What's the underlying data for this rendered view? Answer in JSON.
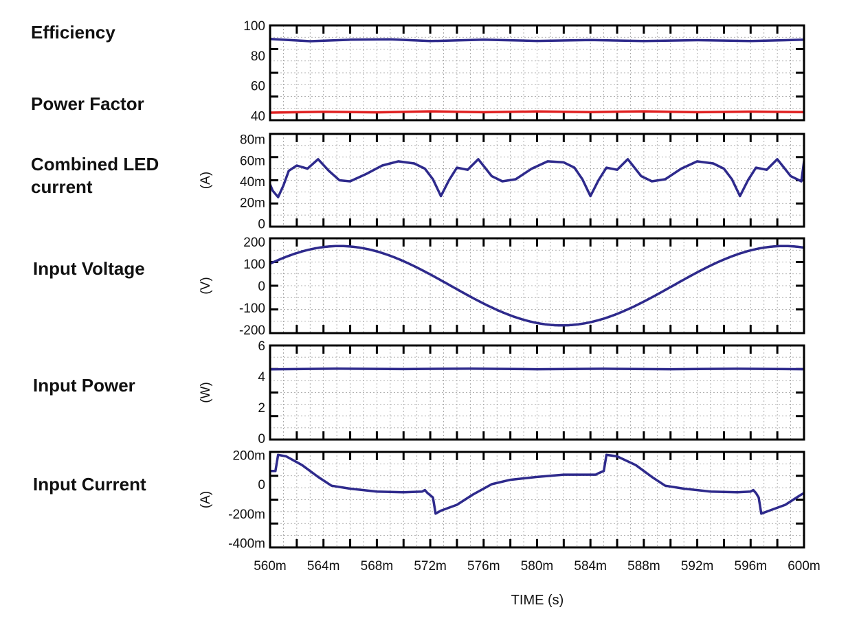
{
  "chart_data": {
    "type": "line",
    "xlabel": "TIME  (s)",
    "x_ticks": [
      "560m",
      "564m",
      "568m",
      "572m",
      "576m",
      "580m",
      "584m",
      "588m",
      "592m",
      "596m",
      "600m"
    ],
    "xlim": [
      0.56,
      0.6
    ],
    "grid": true,
    "panels": [
      {
        "labels": [
          "Efficiency",
          "Power Factor"
        ],
        "unit": "",
        "ylim": [
          37,
          100
        ],
        "y_ticks": [
          {
            "v": 100,
            "t": "100"
          },
          {
            "v": 80,
            "t": "80"
          },
          {
            "v": 60,
            "t": "60"
          },
          {
            "v": 40,
            "t": "40"
          }
        ],
        "series": [
          {
            "color": "#2e2a8c",
            "points": [
              [
                0.56,
                91
              ],
              [
                0.563,
                89.5
              ],
              [
                0.566,
                90.5
              ],
              [
                0.569,
                90.8
              ],
              [
                0.572,
                89.6
              ],
              [
                0.576,
                90.5
              ],
              [
                0.58,
                89.7
              ],
              [
                0.584,
                90.3
              ],
              [
                0.588,
                89.6
              ],
              [
                0.592,
                90.2
              ],
              [
                0.596,
                89.6
              ],
              [
                0.6,
                90.5
              ]
            ]
          },
          {
            "color": "#e02020",
            "points": [
              [
                0.56,
                42
              ],
              [
                0.564,
                42.6
              ],
              [
                0.568,
                42.2
              ],
              [
                0.572,
                42.9
              ],
              [
                0.576,
                42.3
              ],
              [
                0.58,
                42.8
              ],
              [
                0.584,
                42.4
              ],
              [
                0.588,
                42.9
              ],
              [
                0.592,
                42.3
              ],
              [
                0.596,
                42.7
              ],
              [
                0.6,
                42.4
              ]
            ]
          }
        ]
      },
      {
        "labels": [
          "Combined LED",
          "current"
        ],
        "unit": "(A)",
        "ylim": [
          -0.003,
          0.085
        ],
        "y_ticks": [
          {
            "v": 0.08,
            "t": "80m"
          },
          {
            "v": 0.06,
            "t": "60m"
          },
          {
            "v": 0.04,
            "t": "40m"
          },
          {
            "v": 0.02,
            "t": "20m"
          },
          {
            "v": 0,
            "t": "0"
          }
        ],
        "series": [
          {
            "color": "#2e2a8c",
            "points": [
              [
                0.56,
                0.037
              ],
              [
                0.5602,
                0.031
              ],
              [
                0.5606,
                0.025
              ],
              [
                0.561,
                0.036
              ],
              [
                0.5614,
                0.05
              ],
              [
                0.562,
                0.055
              ],
              [
                0.5628,
                0.052
              ],
              [
                0.5636,
                0.061
              ],
              [
                0.5644,
                0.05
              ],
              [
                0.5652,
                0.041
              ],
              [
                0.566,
                0.04
              ],
              [
                0.5672,
                0.047
              ],
              [
                0.5684,
                0.055
              ],
              [
                0.5696,
                0.059
              ],
              [
                0.5708,
                0.057
              ],
              [
                0.5716,
                0.052
              ],
              [
                0.5722,
                0.042
              ],
              [
                0.5728,
                0.026
              ],
              [
                0.5734,
                0.041
              ],
              [
                0.574,
                0.053
              ],
              [
                0.5748,
                0.051
              ],
              [
                0.5756,
                0.061
              ],
              [
                0.5766,
                0.045
              ],
              [
                0.5774,
                0.04
              ],
              [
                0.5784,
                0.042
              ],
              [
                0.5796,
                0.052
              ],
              [
                0.5808,
                0.059
              ],
              [
                0.582,
                0.058
              ],
              [
                0.5828,
                0.053
              ],
              [
                0.5834,
                0.042
              ],
              [
                0.584,
                0.026
              ],
              [
                0.5846,
                0.041
              ],
              [
                0.5852,
                0.053
              ],
              [
                0.586,
                0.051
              ],
              [
                0.5868,
                0.061
              ],
              [
                0.5878,
                0.045
              ],
              [
                0.5886,
                0.04
              ],
              [
                0.5896,
                0.042
              ],
              [
                0.5908,
                0.052
              ],
              [
                0.592,
                0.059
              ],
              [
                0.5932,
                0.057
              ],
              [
                0.594,
                0.052
              ],
              [
                0.5946,
                0.042
              ],
              [
                0.5952,
                0.026
              ],
              [
                0.5958,
                0.041
              ],
              [
                0.5964,
                0.053
              ],
              [
                0.5972,
                0.051
              ],
              [
                0.598,
                0.061
              ],
              [
                0.599,
                0.045
              ],
              [
                0.5998,
                0.04
              ],
              [
                0.6008,
                0.042
              ],
              [
                0.602,
                0.052
              ],
              [
                0.6032,
                0.059
              ],
              [
                0.6,
                0.059
              ]
            ]
          }
        ]
      },
      {
        "labels": [
          "Input Voltage"
        ],
        "unit": "(V)",
        "ylim": [
          -215,
          215
        ],
        "y_ticks": [
          {
            "v": 200,
            "t": "200"
          },
          {
            "v": 100,
            "t": "100"
          },
          {
            "v": 0,
            "t": "0"
          },
          {
            "v": -100,
            "t": "-100"
          },
          {
            "v": -200,
            "t": "-200"
          }
        ],
        "series": [
          {
            "color": "#2e2a8c",
            "sine": {
              "amp": 180,
              "period": 0.0333,
              "phase_at_x0": 0.56
            }
          }
        ]
      },
      {
        "labels": [
          "Input Power"
        ],
        "unit": "(W)",
        "ylim": [
          -0.1,
          6.0
        ],
        "y_ticks": [
          {
            "v": 6,
            "t": "6"
          },
          {
            "v": 4,
            "t": "4"
          },
          {
            "v": 2,
            "t": "2"
          },
          {
            "v": 0,
            "t": "0"
          }
        ],
        "series": [
          {
            "color": "#2e2a8c",
            "points": [
              [
                0.56,
                4.45
              ],
              [
                0.565,
                4.5
              ],
              [
                0.57,
                4.47
              ],
              [
                0.575,
                4.5
              ],
              [
                0.58,
                4.46
              ],
              [
                0.585,
                4.49
              ],
              [
                0.59,
                4.46
              ],
              [
                0.595,
                4.49
              ],
              [
                0.6,
                4.46
              ]
            ]
          }
        ]
      },
      {
        "labels": [
          "Input Current"
        ],
        "unit": "(A)",
        "ylim": [
          -0.43,
          0.22
        ],
        "y_ticks": [
          {
            "v": 0.2,
            "t": "200m"
          },
          {
            "v": 0,
            "t": "0"
          },
          {
            "v": -0.2,
            "t": "-200m"
          },
          {
            "v": -0.4,
            "t": "-400m"
          }
        ],
        "series": [
          {
            "color": "#2e2a8c",
            "points": [
              [
                0.56,
                0.09
              ],
              [
                0.5604,
                0.09
              ],
              [
                0.5606,
                0.2
              ],
              [
                0.5612,
                0.19
              ],
              [
                0.5624,
                0.13
              ],
              [
                0.5636,
                0.05
              ],
              [
                0.5646,
                -0.01
              ],
              [
                0.566,
                -0.03
              ],
              [
                0.568,
                -0.05
              ],
              [
                0.57,
                -0.055
              ],
              [
                0.5714,
                -0.05
              ],
              [
                0.5716,
                -0.04
              ],
              [
                0.5718,
                -0.06
              ],
              [
                0.5722,
                -0.09
              ],
              [
                0.5724,
                -0.2
              ],
              [
                0.5728,
                -0.18
              ],
              [
                0.574,
                -0.14
              ],
              [
                0.5752,
                -0.07
              ],
              [
                0.5766,
                0.0
              ],
              [
                0.578,
                0.03
              ],
              [
                0.58,
                0.05
              ],
              [
                0.582,
                0.065
              ],
              [
                0.5844,
                0.065
              ],
              [
                0.5846,
                0.075
              ],
              [
                0.585,
                0.09
              ],
              [
                0.5852,
                0.2
              ],
              [
                0.586,
                0.19
              ],
              [
                0.5874,
                0.13
              ],
              [
                0.5886,
                0.05
              ],
              [
                0.5896,
                -0.01
              ],
              [
                0.591,
                -0.03
              ],
              [
                0.593,
                -0.05
              ],
              [
                0.595,
                -0.055
              ],
              [
                0.596,
                -0.05
              ],
              [
                0.5962,
                -0.04
              ],
              [
                0.5964,
                -0.06
              ],
              [
                0.5966,
                -0.09
              ],
              [
                0.5968,
                -0.2
              ],
              [
                0.5974,
                -0.18
              ],
              [
                0.5986,
                -0.14
              ],
              [
                0.5998,
                -0.07
              ],
              [
                0.6,
                -0.06
              ]
            ]
          }
        ]
      }
    ]
  }
}
